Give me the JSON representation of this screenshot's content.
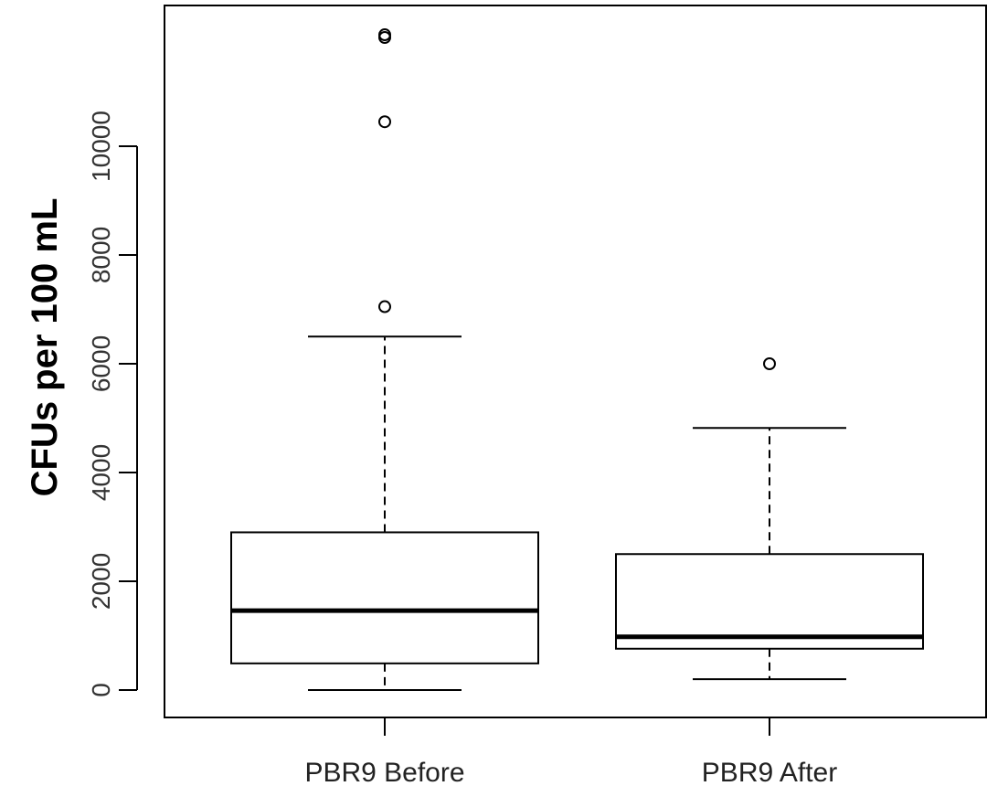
{
  "chart_data": {
    "type": "box",
    "title": "",
    "xlabel": "",
    "ylabel": "CFUs per 100 mL",
    "ylim": [
      -500,
      12050
    ],
    "yticks": [
      0,
      2000,
      4000,
      6000,
      8000,
      10000
    ],
    "ytick_labels": [
      "0",
      "2000",
      "4000",
      "6000",
      "8000",
      "10000"
    ],
    "grid": false,
    "legend": "none",
    "categories": [
      "PBR9 Before",
      "PBR9 After"
    ],
    "boxes": [
      {
        "category": "PBR9 Before",
        "whisker_low": 0,
        "q1": 490,
        "median": 1460,
        "q3": 2900,
        "whisker_high": 6500,
        "outliers": [
          7050,
          10450,
          12000,
          12050
        ]
      },
      {
        "category": "PBR9 After",
        "whisker_low": 200,
        "q1": 760,
        "median": 980,
        "q3": 2500,
        "whisker_high": 4820,
        "outliers": [
          6000
        ]
      }
    ]
  }
}
